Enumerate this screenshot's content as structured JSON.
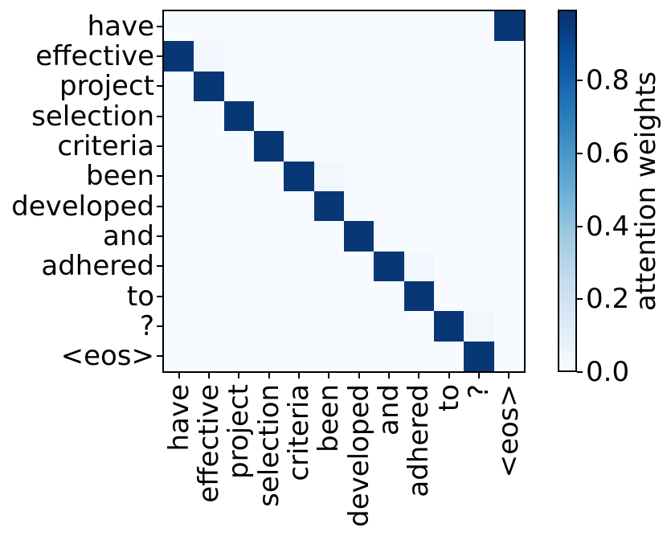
{
  "chart_data": {
    "type": "heatmap",
    "title": "",
    "x_tokens": [
      "have",
      "effective",
      "project",
      "selection",
      "criteria",
      "been",
      "developed",
      "and",
      "adhered",
      "to",
      "?",
      "<eos>"
    ],
    "y_tokens": [
      "have",
      "effective",
      "project",
      "selection",
      "criteria",
      "been",
      "developed",
      "and",
      "adhered",
      "to",
      "?",
      "<eos>"
    ],
    "matrix": [
      [
        0,
        0,
        0,
        0,
        0,
        0,
        0,
        0,
        0,
        0,
        0,
        0.97
      ],
      [
        0.97,
        0.03,
        0,
        0,
        0,
        0,
        0,
        0,
        0,
        0,
        0,
        0
      ],
      [
        0,
        0.97,
        0,
        0,
        0,
        0,
        0,
        0,
        0,
        0,
        0,
        0
      ],
      [
        0,
        0,
        0.97,
        0,
        0,
        0,
        0,
        0,
        0,
        0,
        0,
        0
      ],
      [
        0,
        0,
        0,
        0.97,
        0,
        0,
        0,
        0,
        0,
        0,
        0,
        0
      ],
      [
        0,
        0,
        0,
        0,
        0.97,
        0.03,
        0,
        0,
        0,
        0,
        0,
        0
      ],
      [
        0,
        0,
        0,
        0,
        0,
        0.97,
        0,
        0,
        0,
        0,
        0,
        0
      ],
      [
        0,
        0,
        0,
        0,
        0,
        0,
        0.97,
        0,
        0,
        0,
        0,
        0
      ],
      [
        0,
        0,
        0,
        0,
        0,
        0,
        0,
        0.97,
        0.03,
        0,
        0,
        0
      ],
      [
        0,
        0,
        0,
        0,
        0,
        0,
        0,
        0,
        0.97,
        0,
        0,
        0
      ],
      [
        0,
        0,
        0,
        0,
        0,
        0,
        0,
        0,
        0,
        0.97,
        0.03,
        0
      ],
      [
        0,
        0,
        0,
        0,
        0,
        0,
        0,
        0,
        0,
        0,
        0.97,
        0
      ]
    ],
    "vmin": 0.0,
    "vmax": 0.995,
    "x_tick_rotation": 90,
    "grid": false,
    "colormap": {
      "name": "Blues",
      "stops": [
        [
          0.0,
          "#f7fbff"
        ],
        [
          0.125,
          "#deebf7"
        ],
        [
          0.25,
          "#c6dbef"
        ],
        [
          0.375,
          "#9ecae1"
        ],
        [
          0.5,
          "#6baed6"
        ],
        [
          0.625,
          "#4292c6"
        ],
        [
          0.75,
          "#2171b5"
        ],
        [
          0.875,
          "#08519c"
        ],
        [
          1.0,
          "#08306b"
        ]
      ]
    },
    "colorbar": {
      "label": "attention weights",
      "position": "right",
      "ticks": [
        0.0,
        0.2,
        0.4,
        0.6,
        0.8
      ],
      "tick_labels": [
        "0.0",
        "0.2",
        "0.4",
        "0.6",
        "0.8"
      ]
    },
    "text_color": "#000000",
    "background_color": "#ffffff"
  }
}
